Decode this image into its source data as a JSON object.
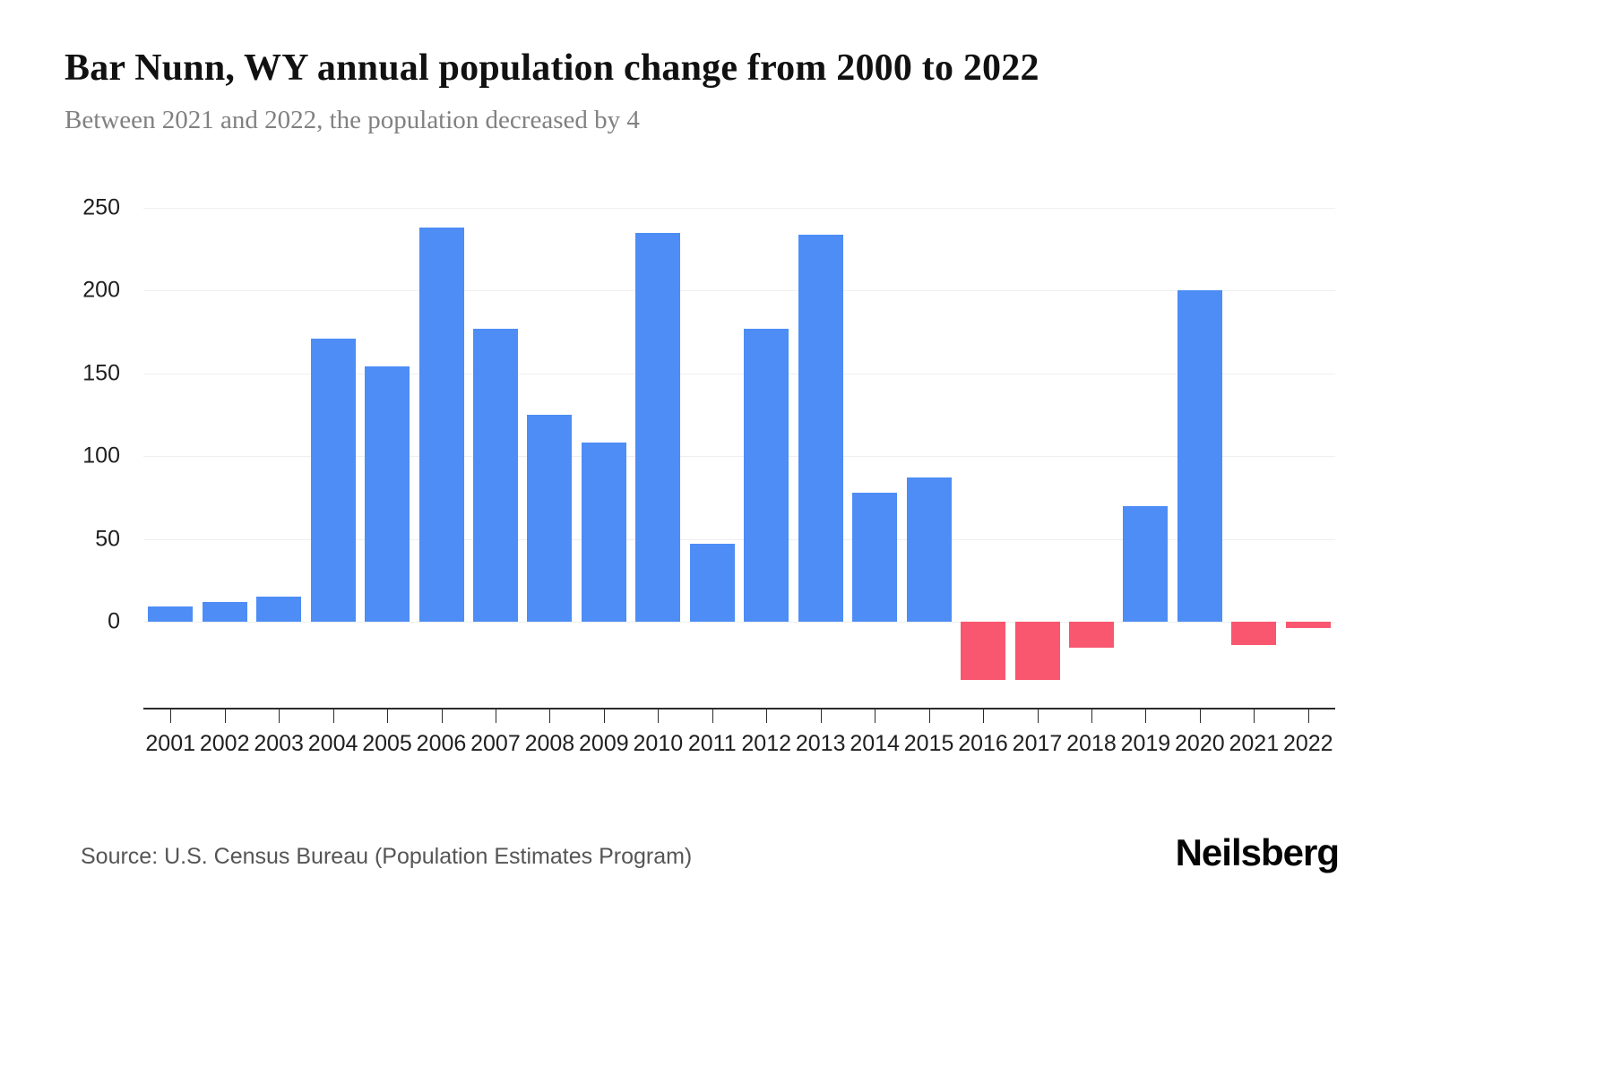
{
  "header": {
    "title": "Bar Nunn, WY annual population change from 2000 to 2022",
    "subtitle": "Between 2021 and 2022, the population decreased by 4"
  },
  "footer": {
    "source": "Source: U.S. Census Bureau (Population Estimates Program)",
    "brand": "Neilsberg"
  },
  "chart_data": {
    "type": "bar",
    "title": "Bar Nunn, WY annual population change from 2000 to 2022",
    "xlabel": "",
    "ylabel": "",
    "categories": [
      "2001",
      "2002",
      "2003",
      "2004",
      "2005",
      "2006",
      "2007",
      "2008",
      "2009",
      "2010",
      "2011",
      "2012",
      "2013",
      "2014",
      "2015",
      "2016",
      "2017",
      "2018",
      "2019",
      "2020",
      "2021",
      "2022"
    ],
    "values": [
      9,
      12,
      15,
      171,
      154,
      238,
      177,
      125,
      108,
      235,
      47,
      177,
      234,
      78,
      87,
      -35,
      -35,
      -16,
      70,
      200,
      -14,
      -4
    ],
    "yticks": [
      0,
      50,
      100,
      150,
      200,
      250
    ],
    "ylim": [
      -52,
      250
    ],
    "grid": true,
    "legend": "none",
    "colors": {
      "positive": "#4d8df5",
      "negative": "#f9566f"
    }
  }
}
